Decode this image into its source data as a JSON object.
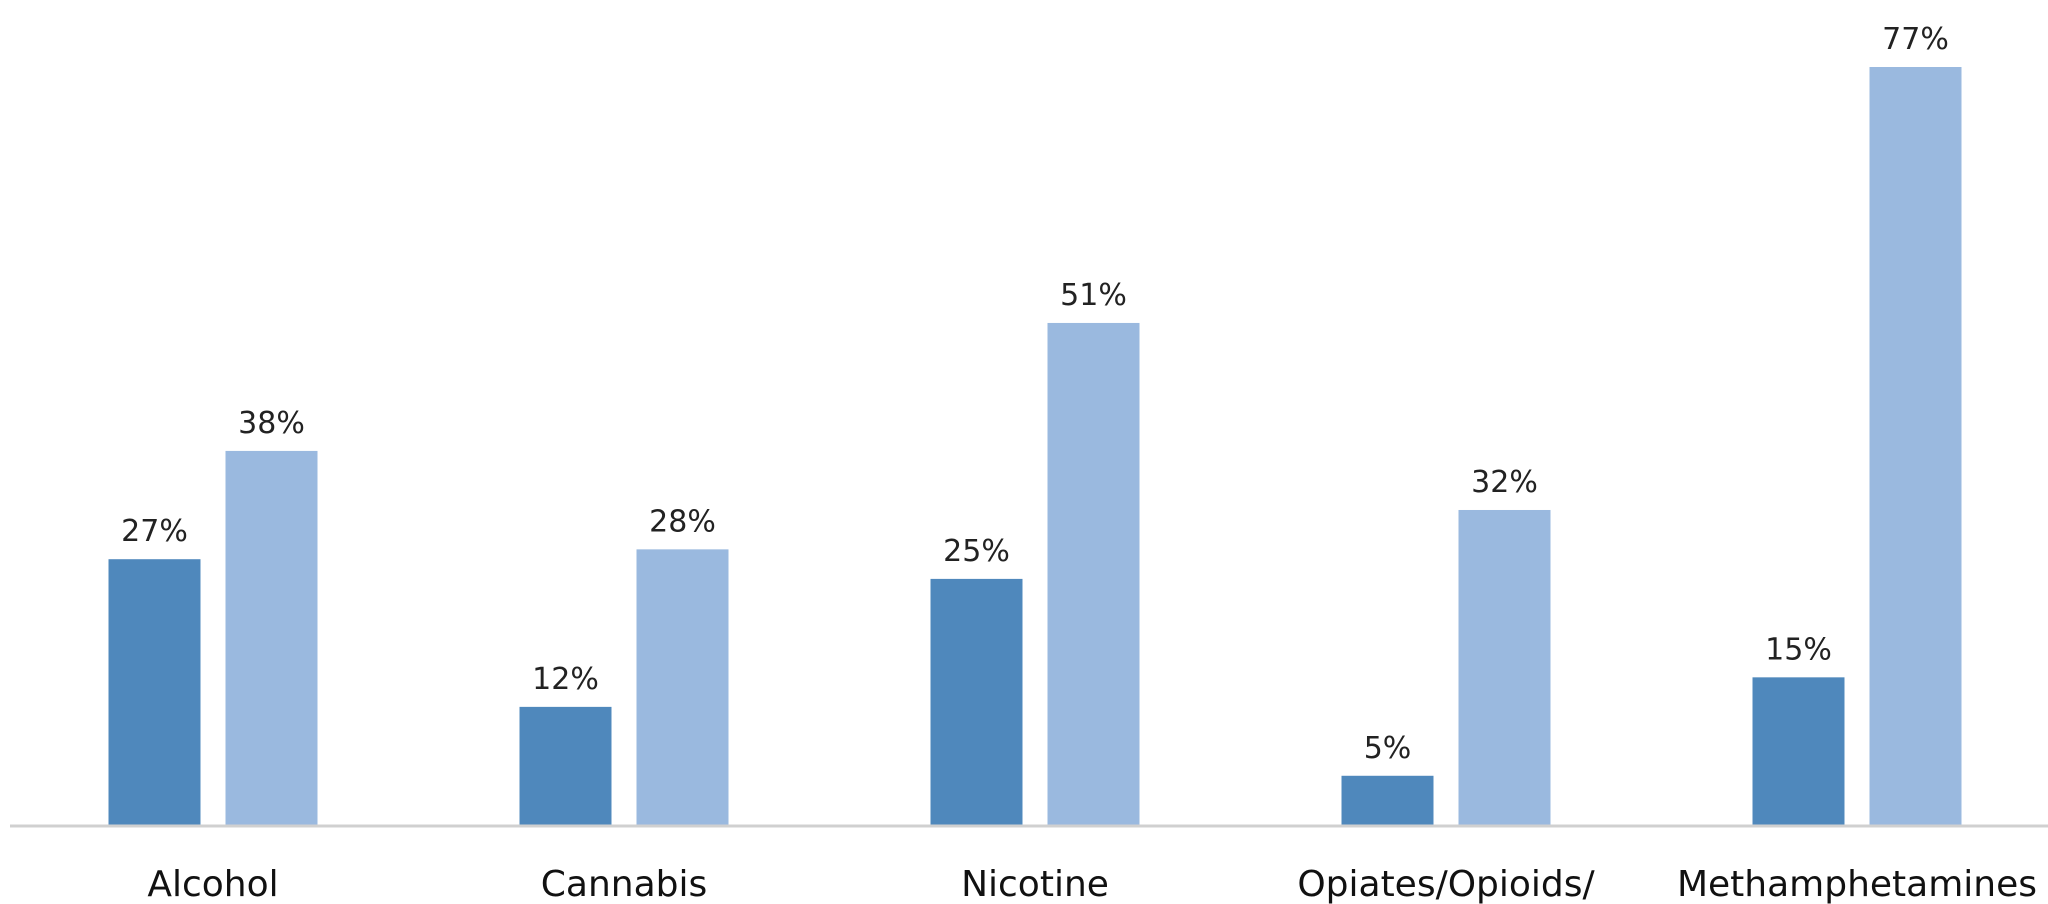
{
  "chart_data": {
    "type": "bar",
    "categories": [
      "Alcohol",
      "Cannabis",
      "Nicotine",
      "Opiates/Opioids/",
      "Methamphetamines"
    ],
    "series": [
      {
        "values": [
          27,
          12,
          25,
          5,
          15
        ],
        "color": "#4f88bc",
        "labels": [
          "27%",
          "12%",
          "25%",
          "5%",
          "15%"
        ]
      },
      {
        "values": [
          38,
          28,
          51,
          32,
          77
        ],
        "color": "#9ab9df",
        "labels": [
          "38%",
          "28%",
          "51%",
          "32%",
          "77%"
        ]
      }
    ],
    "title": "",
    "xlabel": "",
    "ylabel": "",
    "ylim": [
      0,
      77
    ],
    "grid": false,
    "axis_color": "#d0d0d0"
  }
}
